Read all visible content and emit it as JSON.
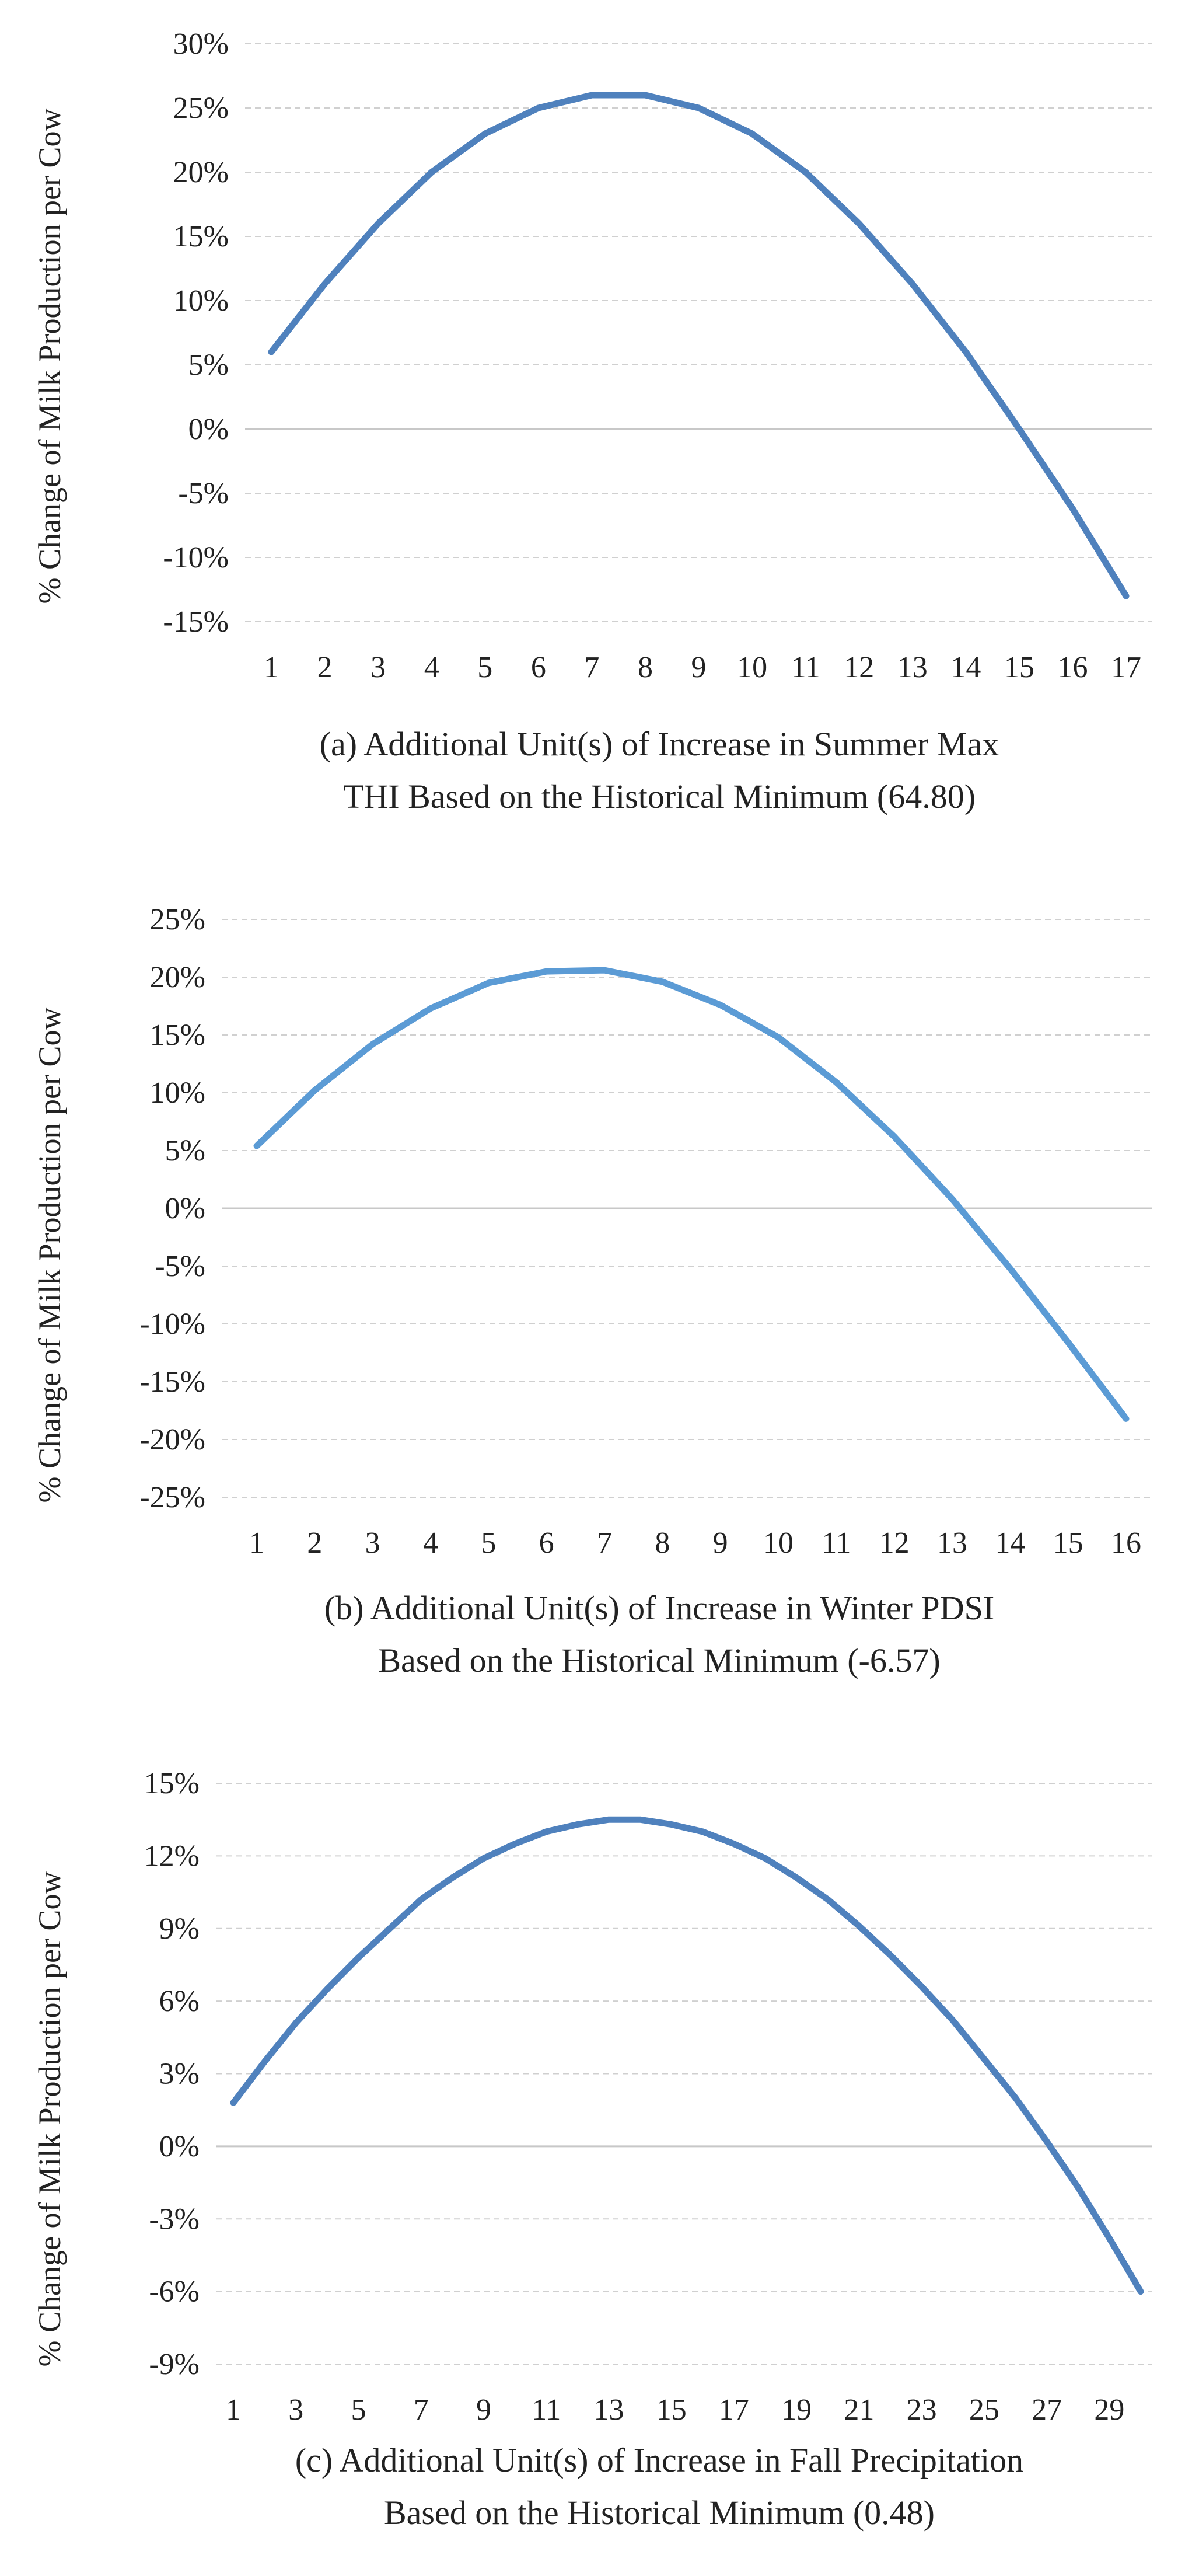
{
  "chart_data": [
    {
      "type": "line",
      "ylabel": "% Change of Milk Production per Cow",
      "caption": [
        "(a) Additional Unit(s) of Increase in Summer Max",
        "THI Based on the Historical Minimum (64.80)"
      ],
      "categories": [
        "1",
        "2",
        "3",
        "4",
        "5",
        "6",
        "7",
        "8",
        "9",
        "10",
        "11",
        "12",
        "13",
        "14",
        "15",
        "16",
        "17"
      ],
      "values": [
        6,
        11.3,
        16,
        20,
        23,
        25,
        26,
        26,
        25,
        23,
        20,
        16,
        11.3,
        6,
        0,
        -6.2,
        -13
      ],
      "ylim": [
        -15,
        30
      ],
      "yticks": [
        30,
        25,
        20,
        15,
        10,
        5,
        0,
        -5,
        -10,
        -15
      ],
      "ytick_labels": [
        "30%",
        "25%",
        "20%",
        "15%",
        "10%",
        "5%",
        "0%",
        "-5%",
        "-10%",
        "-15%"
      ],
      "line_color": "#4f81bd",
      "grid": true
    },
    {
      "type": "line",
      "ylabel": "% Change of Milk Production per Cow",
      "caption": [
        "(b) Additional Unit(s) of Increase in Winter PDSI",
        "Based on the Historical Minimum (-6.57)"
      ],
      "categories": [
        "1",
        "2",
        "3",
        "4",
        "5",
        "6",
        "7",
        "8",
        "9",
        "10",
        "11",
        "12",
        "13",
        "14",
        "15",
        "16"
      ],
      "values": [
        5.4,
        10.2,
        14.2,
        17.3,
        19.5,
        20.5,
        20.6,
        19.6,
        17.6,
        14.8,
        10.9,
        6.2,
        0.8,
        -5.2,
        -11.6,
        -18.2
      ],
      "ylim": [
        -25,
        25
      ],
      "yticks": [
        25,
        20,
        15,
        10,
        5,
        0,
        -5,
        -10,
        -15,
        -20,
        -25
      ],
      "ytick_labels": [
        "25%",
        "20%",
        "15%",
        "10%",
        "5%",
        "0%",
        "-5%",
        "-10%",
        "-15%",
        "-20%",
        "-25%"
      ],
      "line_color": "#5b9bd5",
      "grid": true
    },
    {
      "type": "line",
      "ylabel": "% Change of Milk Production per Cow",
      "caption": [
        "(c) Additional Unit(s) of Increase in Fall Precipitation",
        "Based on the Historical Minimum (0.48)"
      ],
      "x": [
        1,
        2,
        3,
        4,
        5,
        6,
        7,
        8,
        9,
        10,
        11,
        12,
        13,
        14,
        15,
        16,
        17,
        18,
        19,
        20,
        21,
        22,
        23,
        24,
        25,
        26,
        27,
        28,
        29,
        30
      ],
      "tick_labels": [
        "1",
        "3",
        "5",
        "7",
        "9",
        "11",
        "13",
        "15",
        "17",
        "19",
        "21",
        "23",
        "25",
        "27",
        "29"
      ],
      "values": [
        1.8,
        3.5,
        5.1,
        6.5,
        7.8,
        9.0,
        10.2,
        11.1,
        11.9,
        12.5,
        13.0,
        13.3,
        13.5,
        13.5,
        13.3,
        13.0,
        12.5,
        11.9,
        11.1,
        10.2,
        9.1,
        7.9,
        6.6,
        5.2,
        3.6,
        2.0,
        0.2,
        -1.7,
        -3.8,
        -6.0
      ],
      "ylim": [
        -9,
        15
      ],
      "yticks": [
        15,
        12,
        9,
        6,
        3,
        0,
        -3,
        -6,
        -9
      ],
      "ytick_labels": [
        "15%",
        "12%",
        "9%",
        "6%",
        "3%",
        "0%",
        "-3%",
        "-6%",
        "-9%"
      ],
      "line_color": "#4f81bd",
      "grid": true
    }
  ]
}
